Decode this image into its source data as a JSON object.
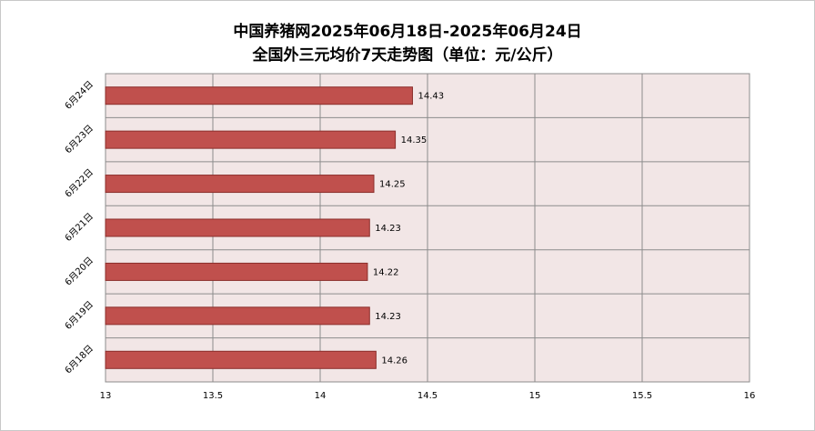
{
  "chart_data": {
    "type": "bar",
    "orientation": "horizontal",
    "title_line1": "中国养猪网2025年06月18日-2025年06月24日",
    "title_line2": "全国外三元均价7天走势图（单位：元/公斤）",
    "categories": [
      "6月24日",
      "6月23日",
      "6月22日",
      "6月21日",
      "6月20日",
      "6月19日",
      "6月18日"
    ],
    "values": [
      14.43,
      14.35,
      14.25,
      14.23,
      14.22,
      14.23,
      14.26
    ],
    "value_labels": [
      "14.43",
      "14.35",
      "14.25",
      "14.23",
      "14.22",
      "14.23",
      "14.26"
    ],
    "xlim": [
      13,
      16
    ],
    "xticks": [
      "13",
      "13.5",
      "14",
      "14.5",
      "15",
      "15.5",
      "16"
    ],
    "grid": true,
    "legend": "none",
    "colors": {
      "bar": "#c0504d",
      "bar_border": "#8b2e2b",
      "plot_bg": "#f2e6e6",
      "grid": "#8c8c8c"
    }
  }
}
